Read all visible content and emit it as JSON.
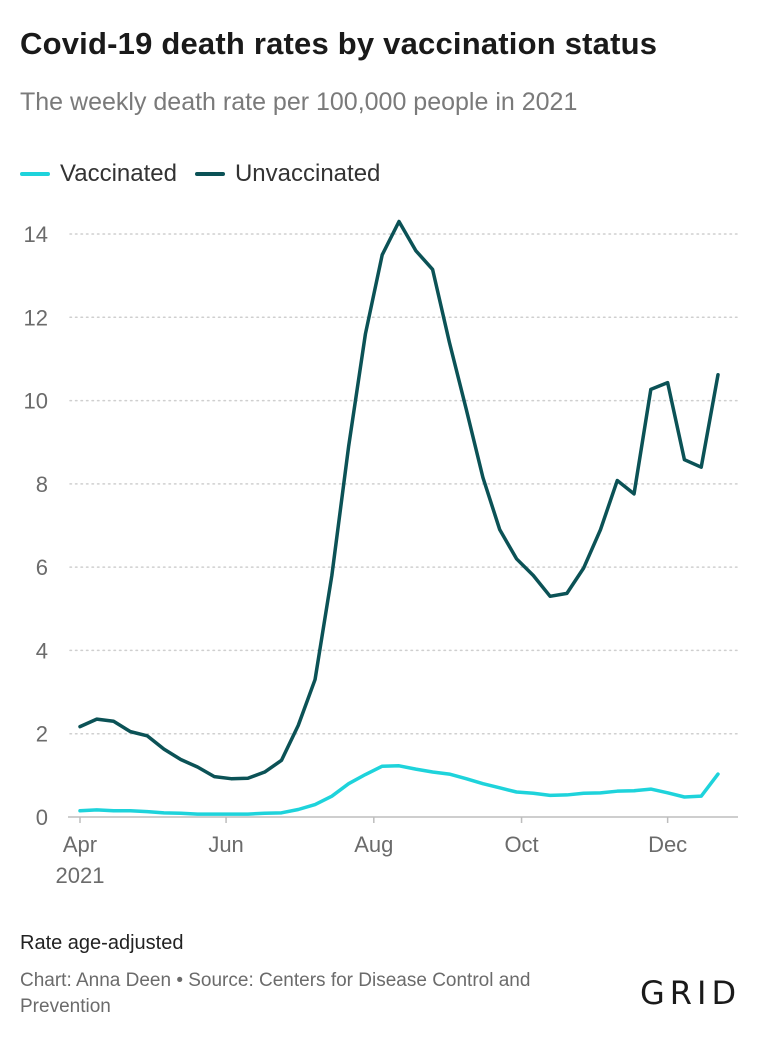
{
  "header": {
    "title": "Covid-19 death rates by vaccination status",
    "subtitle": "The weekly death rate per 100,000 people in 2021"
  },
  "footer": {
    "note": "Rate age-adjusted",
    "credit": "Chart: Anna Deen • Source: Centers for Disease Control and Prevention",
    "logo": "GRID"
  },
  "chart_data": {
    "type": "line",
    "title": "Covid-19 death rates by vaccination status",
    "subtitle": "The weekly death rate per 100,000 people in 2021",
    "xlabel": "",
    "ylabel": "",
    "ylim": [
      0,
      14
    ],
    "yticks": [
      0,
      2,
      4,
      6,
      8,
      10,
      12,
      14
    ],
    "xticks": [
      {
        "label": "Apr",
        "sublabel": "2021",
        "week": 0
      },
      {
        "label": "Jun",
        "sublabel": "",
        "week": 8.7
      },
      {
        "label": "Aug",
        "sublabel": "",
        "week": 17.5
      },
      {
        "label": "Oct",
        "sublabel": "",
        "week": 26.3
      },
      {
        "label": "Dec",
        "sublabel": "",
        "week": 35
      }
    ],
    "grid": true,
    "legend_position": "top-left",
    "series": [
      {
        "name": "Vaccinated",
        "color": "#1ed3db",
        "values": [
          0.15,
          0.17,
          0.15,
          0.15,
          0.13,
          0.1,
          0.09,
          0.07,
          0.07,
          0.07,
          0.07,
          0.09,
          0.1,
          0.18,
          0.3,
          0.5,
          0.8,
          1.02,
          1.22,
          1.23,
          1.15,
          1.08,
          1.03,
          0.92,
          0.8,
          0.7,
          0.6,
          0.57,
          0.52,
          0.53,
          0.57,
          0.58,
          0.62,
          0.63,
          0.67,
          0.58,
          0.48,
          0.5,
          1.03
        ]
      },
      {
        "name": "Unvaccinated",
        "color": "#0b5256",
        "values": [
          2.17,
          2.35,
          2.3,
          2.05,
          1.95,
          1.63,
          1.38,
          1.2,
          0.97,
          0.92,
          0.93,
          1.08,
          1.36,
          2.2,
          3.3,
          5.8,
          8.9,
          11.6,
          13.5,
          14.3,
          13.6,
          13.15,
          11.4,
          9.8,
          8.15,
          6.9,
          6.2,
          5.8,
          5.3,
          5.37,
          5.98,
          6.9,
          8.08,
          7.76,
          10.27,
          10.43,
          8.58,
          8.4,
          10.62
        ]
      }
    ]
  }
}
